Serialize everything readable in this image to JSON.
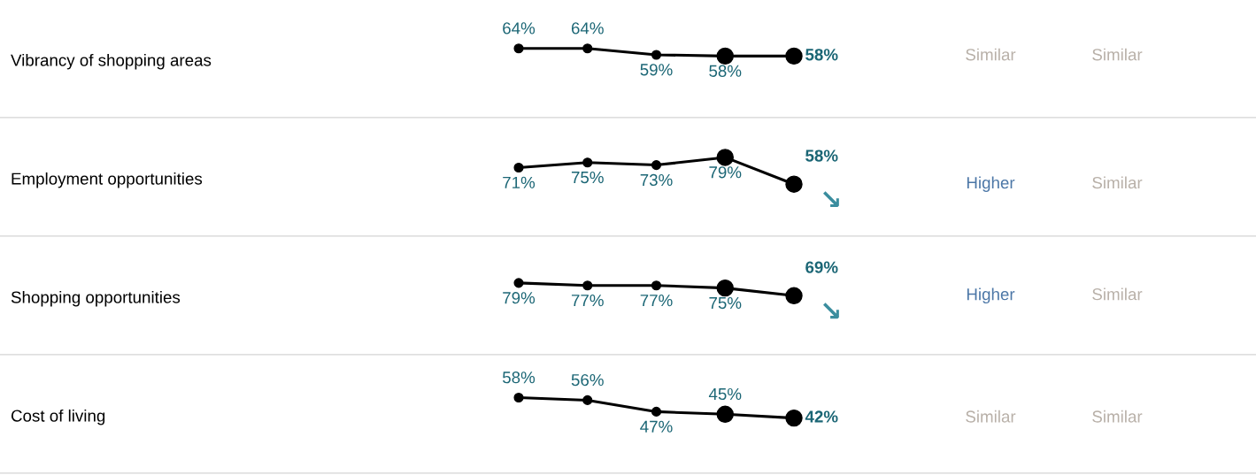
{
  "chart_data": [
    {
      "type": "line",
      "ylabel": "Vibrancy of shopping areas",
      "categories": [
        null,
        null,
        null,
        null,
        null
      ],
      "values": [
        64,
        64,
        59,
        58,
        58
      ],
      "value_labels": [
        "64%",
        "64%",
        "59%",
        "58%",
        "58%"
      ],
      "color": "#000000",
      "marker": "circle",
      "annotations": [
        "Similar",
        "Similar"
      ]
    },
    {
      "type": "line",
      "ylabel": "Employment opportunities",
      "categories": [
        null,
        null,
        null,
        null,
        null
      ],
      "values": [
        71,
        75,
        73,
        79,
        58
      ],
      "value_labels": [
        "71%",
        "75%",
        "73%",
        "79%",
        "58%"
      ],
      "color": "#000000",
      "marker": "circle",
      "annotations": [
        "↘",
        "Higher",
        "Similar"
      ]
    },
    {
      "type": "line",
      "ylabel": "Shopping opportunities",
      "categories": [
        null,
        null,
        null,
        null,
        null
      ],
      "values": [
        79,
        77,
        77,
        75,
        69
      ],
      "value_labels": [
        "79%",
        "77%",
        "77%",
        "75%",
        "69%"
      ],
      "color": "#000000",
      "marker": "circle",
      "annotations": [
        "↘",
        "Higher",
        "Similar"
      ]
    },
    {
      "type": "line",
      "ylabel": "Cost of living",
      "categories": [
        null,
        null,
        null,
        null,
        null
      ],
      "values": [
        58,
        56,
        47,
        45,
        42
      ],
      "value_labels": [
        "58%",
        "56%",
        "47%",
        "45%",
        "42%"
      ],
      "color": "#000000",
      "marker": "circle",
      "annotations": [
        "Similar",
        "Similar"
      ]
    }
  ]
}
